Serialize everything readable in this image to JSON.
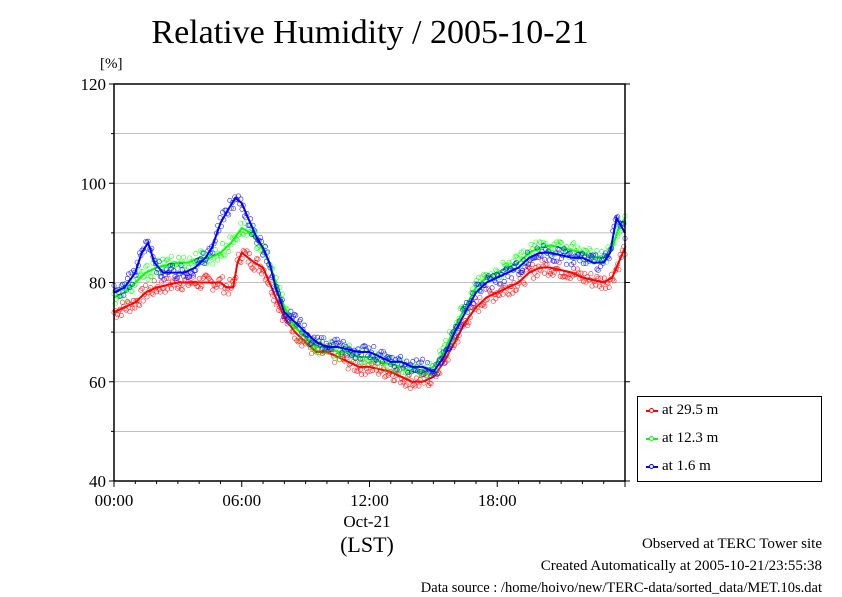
{
  "title": "Relative Humidity / 2005-10-21",
  "y_unit": "[%]",
  "x_date_label": "Oct-21",
  "x_tz_label": "(LST)",
  "footer": {
    "site": "Observed at TERC Tower site",
    "created": "Created Automatically at 2005-10-21/23:55:38",
    "source": "Data source : /home/hoivo/new/TERC-data/sorted_data/MET.10s.dat"
  },
  "chart_data": {
    "type": "line",
    "title": "Relative Humidity / 2005-10-21",
    "ylabel": "[%]",
    "ylim": [
      40,
      120
    ],
    "y_ticks": [
      40,
      60,
      80,
      100,
      120
    ],
    "xlim": [
      0,
      24
    ],
    "x_ticks": [
      {
        "value": 0,
        "label": "00:00"
      },
      {
        "value": 6,
        "label": "06:00"
      },
      {
        "value": 12,
        "label": "12:00"
      },
      {
        "value": 18,
        "label": "18:00"
      }
    ],
    "grid": "horizontal",
    "legend_position": "right-bottom",
    "series": [
      {
        "name": "at 29.5 m",
        "color": "#ff0000",
        "points": [
          [
            0,
            74
          ],
          [
            0.5,
            75
          ],
          [
            1,
            76
          ],
          [
            1.5,
            78
          ],
          [
            2,
            79
          ],
          [
            2.5,
            79.5
          ],
          [
            3,
            80
          ],
          [
            3.5,
            80
          ],
          [
            4,
            80
          ],
          [
            4.5,
            80
          ],
          [
            5,
            80
          ],
          [
            5.3,
            79
          ],
          [
            5.6,
            79
          ],
          [
            5.8,
            84
          ],
          [
            6,
            86
          ],
          [
            6.3,
            85
          ],
          [
            6.6,
            84
          ],
          [
            7,
            83
          ],
          [
            7.3,
            80
          ],
          [
            7.6,
            77
          ],
          [
            8,
            73
          ],
          [
            8.5,
            70
          ],
          [
            9,
            68
          ],
          [
            9.5,
            66
          ],
          [
            10,
            66
          ],
          [
            10.5,
            65
          ],
          [
            11,
            64
          ],
          [
            11.5,
            63
          ],
          [
            12,
            63
          ],
          [
            12.5,
            62.5
          ],
          [
            13,
            62
          ],
          [
            13.5,
            61
          ],
          [
            14,
            60
          ],
          [
            14.5,
            60
          ],
          [
            15,
            61
          ],
          [
            15.5,
            64
          ],
          [
            16,
            68
          ],
          [
            16.5,
            72
          ],
          [
            17,
            75
          ],
          [
            17.5,
            77
          ],
          [
            18,
            78
          ],
          [
            18.5,
            79
          ],
          [
            19,
            80
          ],
          [
            19.5,
            82
          ],
          [
            20,
            83
          ],
          [
            20.5,
            83
          ],
          [
            21,
            82.5
          ],
          [
            21.5,
            82
          ],
          [
            22,
            81
          ],
          [
            22.5,
            80.5
          ],
          [
            23,
            80
          ],
          [
            23.4,
            81
          ],
          [
            23.7,
            84
          ],
          [
            24,
            87
          ]
        ]
      },
      {
        "name": "at 12.3 m",
        "color": "#00ff00",
        "points": [
          [
            0,
            77
          ],
          [
            0.5,
            78
          ],
          [
            1,
            80
          ],
          [
            1.5,
            82
          ],
          [
            2,
            83
          ],
          [
            2.5,
            83.5
          ],
          [
            3,
            84
          ],
          [
            3.5,
            84
          ],
          [
            4,
            85
          ],
          [
            4.5,
            85
          ],
          [
            5,
            86
          ],
          [
            5.5,
            88
          ],
          [
            6,
            91
          ],
          [
            6.4,
            90
          ],
          [
            6.8,
            88
          ],
          [
            7.2,
            85
          ],
          [
            7.6,
            80
          ],
          [
            8,
            75
          ],
          [
            8.5,
            71
          ],
          [
            9,
            69
          ],
          [
            9.5,
            67
          ],
          [
            10,
            67
          ],
          [
            10.5,
            66
          ],
          [
            11,
            66
          ],
          [
            11.5,
            65
          ],
          [
            12,
            65
          ],
          [
            12.5,
            64
          ],
          [
            13,
            63.5
          ],
          [
            13.5,
            63
          ],
          [
            14,
            62
          ],
          [
            14.5,
            62
          ],
          [
            15,
            63
          ],
          [
            15.5,
            66
          ],
          [
            16,
            71
          ],
          [
            16.5,
            75
          ],
          [
            17,
            79
          ],
          [
            17.5,
            81
          ],
          [
            18,
            82
          ],
          [
            18.5,
            83
          ],
          [
            19,
            84
          ],
          [
            19.5,
            86
          ],
          [
            20,
            87
          ],
          [
            20.5,
            87.5
          ],
          [
            21,
            87
          ],
          [
            21.5,
            86.5
          ],
          [
            22,
            86
          ],
          [
            22.5,
            85
          ],
          [
            23,
            85
          ],
          [
            23.4,
            87
          ],
          [
            23.7,
            91
          ],
          [
            24,
            93
          ]
        ]
      },
      {
        "name": "at 1.6 m",
        "color": "#0000ff",
        "points": [
          [
            0,
            78
          ],
          [
            0.5,
            79
          ],
          [
            1,
            82
          ],
          [
            1.3,
            86
          ],
          [
            1.6,
            88
          ],
          [
            1.9,
            84
          ],
          [
            2.3,
            82
          ],
          [
            2.8,
            82
          ],
          [
            3.3,
            82
          ],
          [
            3.8,
            83
          ],
          [
            4.3,
            85
          ],
          [
            4.6,
            87
          ],
          [
            5,
            92
          ],
          [
            5.4,
            95
          ],
          [
            5.7,
            97
          ],
          [
            6,
            96
          ],
          [
            6.3,
            93
          ],
          [
            6.7,
            89
          ],
          [
            7,
            87
          ],
          [
            7.3,
            84
          ],
          [
            7.6,
            79
          ],
          [
            8,
            74
          ],
          [
            8.5,
            72
          ],
          [
            9,
            70
          ],
          [
            9.5,
            68
          ],
          [
            10,
            67
          ],
          [
            10.5,
            67
          ],
          [
            11,
            66.5
          ],
          [
            11.5,
            66
          ],
          [
            12,
            66
          ],
          [
            12.5,
            65
          ],
          [
            13,
            64
          ],
          [
            13.5,
            64
          ],
          [
            14,
            63
          ],
          [
            14.5,
            63
          ],
          [
            15,
            62
          ],
          [
            15.5,
            65
          ],
          [
            16,
            70
          ],
          [
            16.5,
            74
          ],
          [
            17,
            78
          ],
          [
            17.5,
            80
          ],
          [
            18,
            81
          ],
          [
            18.5,
            82
          ],
          [
            19,
            83
          ],
          [
            19.5,
            85
          ],
          [
            20,
            86
          ],
          [
            20.5,
            86
          ],
          [
            21,
            85.5
          ],
          [
            21.5,
            85
          ],
          [
            22,
            85
          ],
          [
            22.5,
            84
          ],
          [
            23,
            84
          ],
          [
            23.3,
            86
          ],
          [
            23.6,
            93
          ],
          [
            24,
            90
          ]
        ]
      }
    ]
  }
}
